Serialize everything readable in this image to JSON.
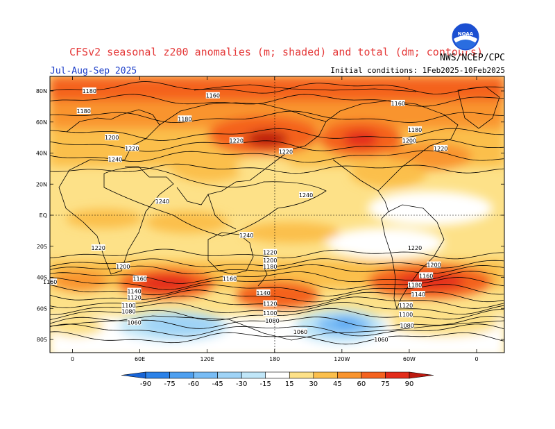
{
  "title": "CFSv2 seasonal z200 anomalies (m; shaded) and total (dm; contours)",
  "season": "Jul-Aug-Sep 2025",
  "agency": "NWS/NCEP/CPC",
  "initial_conditions": "Initial conditions: 1Feb2025-10Feb2025",
  "logo_text": "NOAA",
  "lat_labels": [
    "80N",
    "60N",
    "40N",
    "20N",
    "EQ",
    "20S",
    "40S",
    "60S",
    "80S"
  ],
  "lon_labels": [
    "0",
    "60E",
    "120E",
    "180",
    "120W",
    "60W",
    "0"
  ],
  "colorbar": {
    "ticks": [
      "-90",
      "-75",
      "-60",
      "-45",
      "-30",
      "-15",
      "15",
      "30",
      "45",
      "60",
      "75",
      "90"
    ],
    "colors": [
      "#1764d6",
      "#2c82e8",
      "#4fa0f0",
      "#78bcf5",
      "#9fd3f6",
      "#c0e6f8",
      "#ffffff",
      "#fde188",
      "#fbbf4c",
      "#f9942e",
      "#f4621f",
      "#e32c1a",
      "#bd1a10"
    ]
  },
  "contour_labels": [
    {
      "text": "1180",
      "lon": 15,
      "lat": 80
    },
    {
      "text": "1160",
      "lon": 125,
      "lat": 77
    },
    {
      "text": "1180",
      "lon": 10,
      "lat": 67
    },
    {
      "text": "1180",
      "lon": 100,
      "lat": 62
    },
    {
      "text": "1160",
      "lon": -70,
      "lat": 72
    },
    {
      "text": "1180",
      "lon": -55,
      "lat": 55
    },
    {
      "text": "1200",
      "lon": 35,
      "lat": 50
    },
    {
      "text": "1220",
      "lon": 53,
      "lat": 43
    },
    {
      "text": "1220",
      "lon": 146,
      "lat": 48
    },
    {
      "text": "1220",
      "lon": -170,
      "lat": 41
    },
    {
      "text": "1200",
      "lon": -60,
      "lat": 48
    },
    {
      "text": "1220",
      "lon": -32,
      "lat": 43
    },
    {
      "text": "1240",
      "lon": 38,
      "lat": 36
    },
    {
      "text": "1240",
      "lon": -152,
      "lat": 13
    },
    {
      "text": "1240",
      "lon": 80,
      "lat": 9
    },
    {
      "text": "1240",
      "lon": 155,
      "lat": -13
    },
    {
      "text": "1220",
      "lon": 23,
      "lat": -21
    },
    {
      "text": "1220",
      "lon": 176,
      "lat": -24
    },
    {
      "text": "1220",
      "lon": -55,
      "lat": -21
    },
    {
      "text": "1200",
      "lon": 176,
      "lat": -29
    },
    {
      "text": "1200",
      "lon": 45,
      "lat": -33
    },
    {
      "text": "1200",
      "lon": -38,
      "lat": -32
    },
    {
      "text": "1180",
      "lon": 176,
      "lat": -33
    },
    {
      "text": "1160",
      "lon": -20,
      "lat": -43
    },
    {
      "text": "1160",
      "lon": 60,
      "lat": -41
    },
    {
      "text": "1160",
      "lon": 140,
      "lat": -41
    },
    {
      "text": "1160",
      "lon": -45,
      "lat": -39
    },
    {
      "text": "1180",
      "lon": -55,
      "lat": -45
    },
    {
      "text": "1140",
      "lon": 55,
      "lat": -49
    },
    {
      "text": "1140",
      "lon": 170,
      "lat": -50
    },
    {
      "text": "1140",
      "lon": -52,
      "lat": -51
    },
    {
      "text": "1120",
      "lon": 55,
      "lat": -53
    },
    {
      "text": "1120",
      "lon": 176,
      "lat": -57
    },
    {
      "text": "1120",
      "lon": -63,
      "lat": -58
    },
    {
      "text": "1100",
      "lon": 50,
      "lat": -58
    },
    {
      "text": "1100",
      "lon": 176,
      "lat": -63
    },
    {
      "text": "1100",
      "lon": -63,
      "lat": -64
    },
    {
      "text": "1080",
      "lon": 50,
      "lat": -62
    },
    {
      "text": "1080",
      "lon": 178,
      "lat": -68
    },
    {
      "text": "1080",
      "lon": -62,
      "lat": -71
    },
    {
      "text": "1060",
      "lon": 55,
      "lat": -69
    },
    {
      "text": "1060",
      "lon": -157,
      "lat": -75
    },
    {
      "text": "1060",
      "lon": -85,
      "lat": -80
    }
  ]
}
